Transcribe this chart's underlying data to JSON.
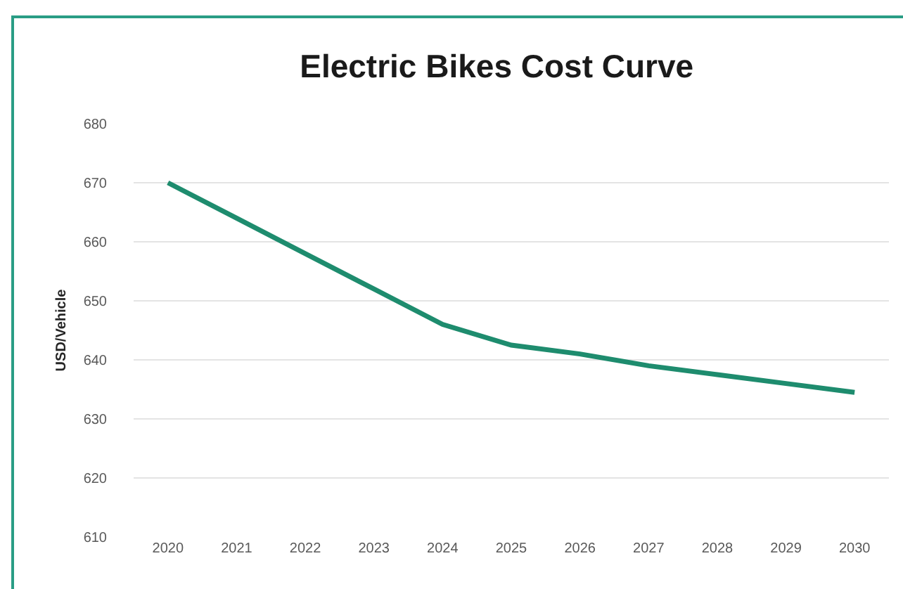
{
  "chart_data": {
    "type": "line",
    "title": "Electric Bikes Cost Curve",
    "ylabel": "USD/Vehicle",
    "categories": [
      "2020",
      "2021",
      "2022",
      "2023",
      "2024",
      "2025",
      "2026",
      "2027",
      "2028",
      "2029",
      "2030"
    ],
    "series": [
      {
        "color": "#1e8c6e",
        "values": [
          670,
          664,
          658,
          652,
          646,
          642.5,
          641,
          639,
          637.5,
          636,
          634.5
        ]
      }
    ],
    "ylim": [
      610,
      680
    ],
    "yticks": [
      610,
      620,
      630,
      640,
      650,
      660,
      670,
      680
    ],
    "grid": "y",
    "marker": "none",
    "line_style": "solid"
  }
}
